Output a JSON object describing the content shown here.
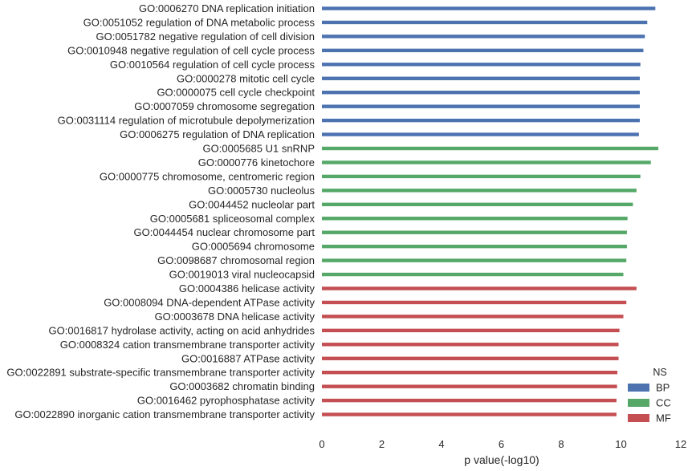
{
  "chart_data": {
    "type": "bar",
    "orientation": "horizontal",
    "xlabel": "p value(-log10)",
    "xlim": [
      0,
      12
    ],
    "xticks": [
      0,
      2,
      4,
      6,
      8,
      10,
      12
    ],
    "grid": false,
    "legend": {
      "title": "NS",
      "placement": "bottom-right",
      "entries": [
        {
          "name": "BP",
          "color": "#4c72b0"
        },
        {
          "name": "CC",
          "color": "#55a868"
        },
        {
          "name": "MF",
          "color": "#c44e52"
        }
      ]
    },
    "bars": [
      {
        "label": "GO:0006270 DNA replication initiation",
        "value": 11.15,
        "group": "BP"
      },
      {
        "label": "GO:0051052 regulation of DNA metabolic process",
        "value": 10.88,
        "group": "BP"
      },
      {
        "label": "GO:0051782 negative regulation of cell division",
        "value": 10.8,
        "group": "BP"
      },
      {
        "label": "GO:0010948 negative regulation of cell cycle process",
        "value": 10.75,
        "group": "BP"
      },
      {
        "label": "GO:0010564 regulation of cell cycle process",
        "value": 10.65,
        "group": "BP"
      },
      {
        "label": "GO:0000278 mitotic cell cycle",
        "value": 10.63,
        "group": "BP"
      },
      {
        "label": "GO:0000075 cell cycle checkpoint",
        "value": 10.63,
        "group": "BP"
      },
      {
        "label": "GO:0007059 chromosome segregation",
        "value": 10.63,
        "group": "BP"
      },
      {
        "label": "GO:0031114 regulation of microtubule depolymerization",
        "value": 10.63,
        "group": "BP"
      },
      {
        "label": "GO:0006275 regulation of DNA replication",
        "value": 10.6,
        "group": "BP"
      },
      {
        "label": "GO:0005685 U1 snRNP",
        "value": 11.25,
        "group": "CC"
      },
      {
        "label": "GO:0000776 kinetochore",
        "value": 11.0,
        "group": "CC"
      },
      {
        "label": "GO:0000775 chromosome, centromeric region",
        "value": 10.65,
        "group": "CC"
      },
      {
        "label": "GO:0005730 nucleolus",
        "value": 10.52,
        "group": "CC"
      },
      {
        "label": "GO:0044452 nucleolar part",
        "value": 10.4,
        "group": "CC"
      },
      {
        "label": "GO:0005681 spliceosomal complex",
        "value": 10.22,
        "group": "CC"
      },
      {
        "label": "GO:0044454 nuclear chromosome part",
        "value": 10.2,
        "group": "CC"
      },
      {
        "label": "GO:0005694 chromosome",
        "value": 10.2,
        "group": "CC"
      },
      {
        "label": "GO:0098687 chromosomal region",
        "value": 10.18,
        "group": "CC"
      },
      {
        "label": "GO:0019013 viral nucleocapsid",
        "value": 10.08,
        "group": "CC"
      },
      {
        "label": "GO:0004386 helicase activity",
        "value": 10.52,
        "group": "MF"
      },
      {
        "label": "GO:0008094 DNA-dependent ATPase activity",
        "value": 10.18,
        "group": "MF"
      },
      {
        "label": "GO:0003678 DNA helicase activity",
        "value": 10.08,
        "group": "MF"
      },
      {
        "label": "GO:0016817 hydrolase activity, acting on acid anhydrides",
        "value": 9.95,
        "group": "MF"
      },
      {
        "label": "GO:0008324 cation transmembrane transporter activity",
        "value": 9.92,
        "group": "MF"
      },
      {
        "label": "GO:0016887 ATPase activity",
        "value": 9.92,
        "group": "MF"
      },
      {
        "label": "GO:0022891 substrate-specific transmembrane transporter activity",
        "value": 9.88,
        "group": "MF"
      },
      {
        "label": "GO:0003682 chromatin binding",
        "value": 9.87,
        "group": "MF"
      },
      {
        "label": "GO:0016462 pyrophosphatase activity",
        "value": 9.85,
        "group": "MF"
      },
      {
        "label": "GO:0022890 inorganic cation transmembrane transporter activity",
        "value": 9.85,
        "group": "MF"
      }
    ]
  }
}
